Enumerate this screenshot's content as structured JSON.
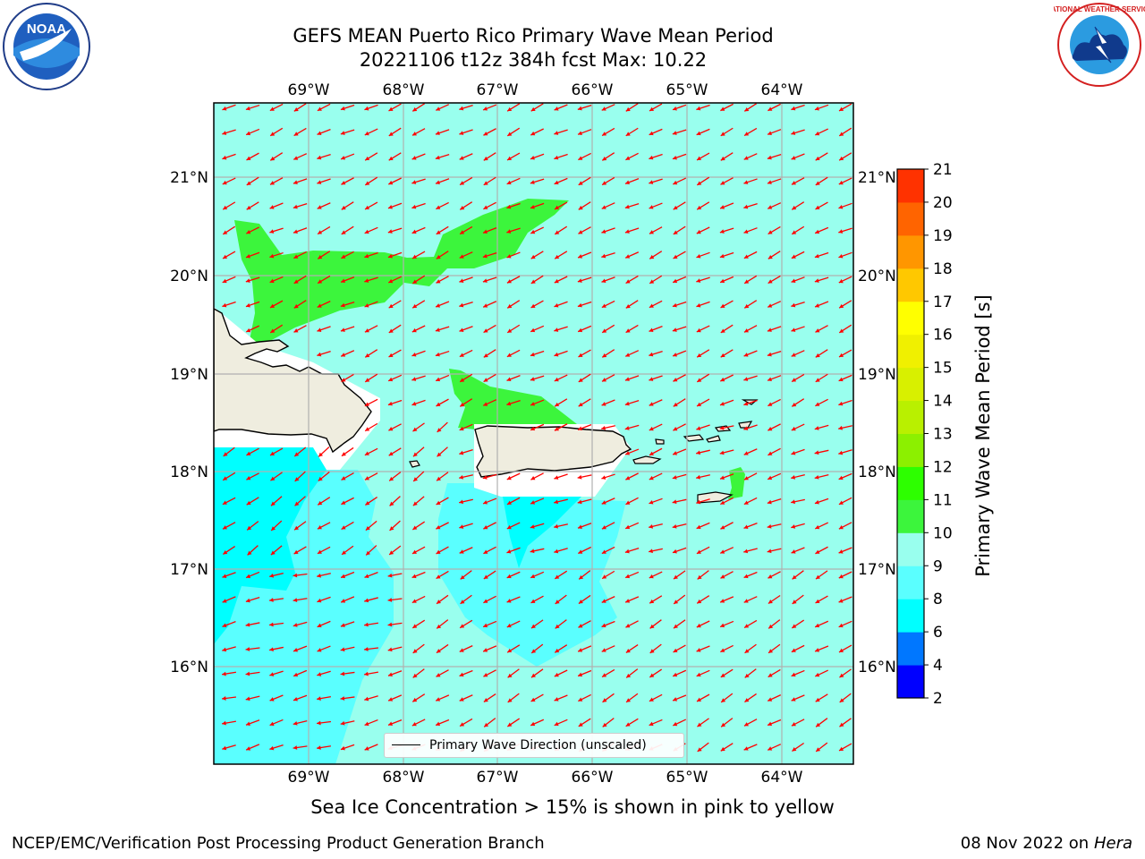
{
  "header": {
    "title_line1": "GEFS MEAN Puerto Rico Primary Wave Mean Period",
    "title_line2": "20221106 t12z 384h fcst   Max: 10.22"
  },
  "logos": {
    "noaa": "NOAA",
    "nws": "NATIONAL WEATHER SERVICE"
  },
  "map": {
    "lon_labels": [
      "69°W",
      "68°W",
      "67°W",
      "66°W",
      "65°W",
      "64°W"
    ],
    "lat_labels": [
      "16°N",
      "17°N",
      "18°N",
      "19°N",
      "20°N",
      "21°N"
    ],
    "arrow_color": "#ff0000",
    "land_color": "#efeddf",
    "legend_label": "Primary Wave Direction (unscaled)"
  },
  "colorbar": {
    "label": "Primary Wave Mean Period [s]",
    "ticks": [
      "2",
      "4",
      "6",
      "8",
      "9",
      "10",
      "11",
      "12",
      "13",
      "14",
      "15",
      "16",
      "17",
      "18",
      "19",
      "20",
      "21"
    ],
    "colors": [
      "#0000ff",
      "#0077ff",
      "#00ffff",
      "#5affff",
      "#99ffee",
      "#3cf53c",
      "#2dff00",
      "#8cf000",
      "#b9f000",
      "#d8f000",
      "#f0f000",
      "#ffff00",
      "#ffc800",
      "#ff9600",
      "#ff6400",
      "#ff3200",
      "#ff0000"
    ]
  },
  "footer": {
    "note": "Sea Ice Concentration > 15% is shown in pink to yellow",
    "credit": "NCEP/EMC/Verification Post Processing Product Generation Branch",
    "date": "08 Nov 2022 on",
    "host": "Hera"
  }
}
